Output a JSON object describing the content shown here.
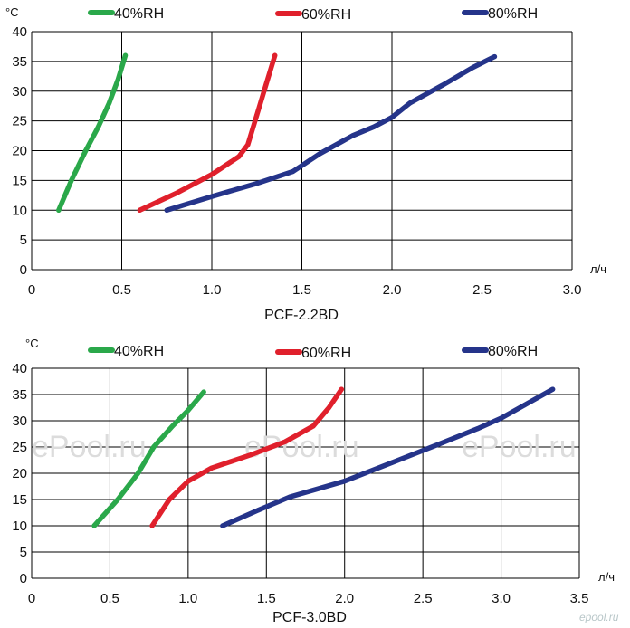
{
  "colors": {
    "rh40": "#2aa84a",
    "rh60": "#e0202c",
    "rh80": "#25348a",
    "grid": "#000000"
  },
  "logo": "epool.ru",
  "chart_data": [
    {
      "type": "line",
      "title": "PCF-2.2BD",
      "ylabel": "°C",
      "xlabel": "л/ч",
      "xlim": [
        0,
        3.0
      ],
      "ylim": [
        0,
        40
      ],
      "xticks": [
        "0",
        "0.5",
        "1.0",
        "1.5",
        "2.0",
        "2.5",
        "3.0"
      ],
      "yticks": [
        "0",
        "5",
        "10",
        "15",
        "20",
        "25",
        "30",
        "35",
        "40"
      ],
      "grid": true,
      "legend_position": "top",
      "watermarks": [],
      "series": [
        {
          "name": "40%RH",
          "color": "#2aa84a",
          "x": [
            0.15,
            0.22,
            0.3,
            0.37,
            0.43,
            0.48,
            0.52
          ],
          "y": [
            10,
            15,
            20,
            24,
            28,
            32,
            36
          ]
        },
        {
          "name": "60%RH",
          "color": "#e0202c",
          "x": [
            0.6,
            0.8,
            1.0,
            1.15,
            1.2,
            1.25,
            1.3,
            1.35
          ],
          "y": [
            10,
            12.8,
            16,
            19,
            21,
            26,
            31,
            36
          ]
        },
        {
          "name": "80%RH",
          "color": "#25348a",
          "x": [
            0.75,
            1.0,
            1.25,
            1.45,
            1.6,
            1.78,
            1.9,
            2.0,
            2.1,
            2.28,
            2.45,
            2.57
          ],
          "y": [
            10,
            12.3,
            14.5,
            16.5,
            19.5,
            22.5,
            24,
            25.6,
            28,
            31,
            34,
            35.8
          ]
        }
      ]
    },
    {
      "type": "line",
      "title": "PCF-3.0BD",
      "ylabel": "°C",
      "xlabel": "л/ч",
      "xlim": [
        0,
        3.5
      ],
      "ylim": [
        0,
        40
      ],
      "xticks": [
        "0",
        "0.5",
        "1.0",
        "1.5",
        "2.0",
        "2.5",
        "3.0",
        "3.5"
      ],
      "yticks": [
        "0",
        "5",
        "10",
        "15",
        "20",
        "25",
        "30",
        "35",
        "40"
      ],
      "grid": true,
      "legend_position": "top",
      "watermarks": [
        "ePool.ru",
        "ePool.ru",
        "ePool.ru"
      ],
      "series": [
        {
          "name": "40%RH",
          "color": "#2aa84a",
          "x": [
            0.4,
            0.55,
            0.68,
            0.78,
            0.9,
            1.0,
            1.1
          ],
          "y": [
            10,
            15,
            20,
            25,
            29,
            32,
            35.5
          ]
        },
        {
          "name": "60%RH",
          "color": "#e0202c",
          "x": [
            0.77,
            0.88,
            1.0,
            1.15,
            1.4,
            1.62,
            1.8,
            1.9,
            1.98
          ],
          "y": [
            10,
            15,
            18.5,
            21,
            23.5,
            26,
            29,
            32.5,
            36
          ]
        },
        {
          "name": "80%RH",
          "color": "#25348a",
          "x": [
            1.22,
            1.45,
            1.65,
            2.0,
            2.3,
            2.6,
            2.85,
            3.0,
            3.15,
            3.33
          ],
          "y": [
            10,
            13,
            15.5,
            18.5,
            22,
            25.5,
            28.5,
            30.5,
            33,
            36
          ]
        }
      ]
    }
  ]
}
